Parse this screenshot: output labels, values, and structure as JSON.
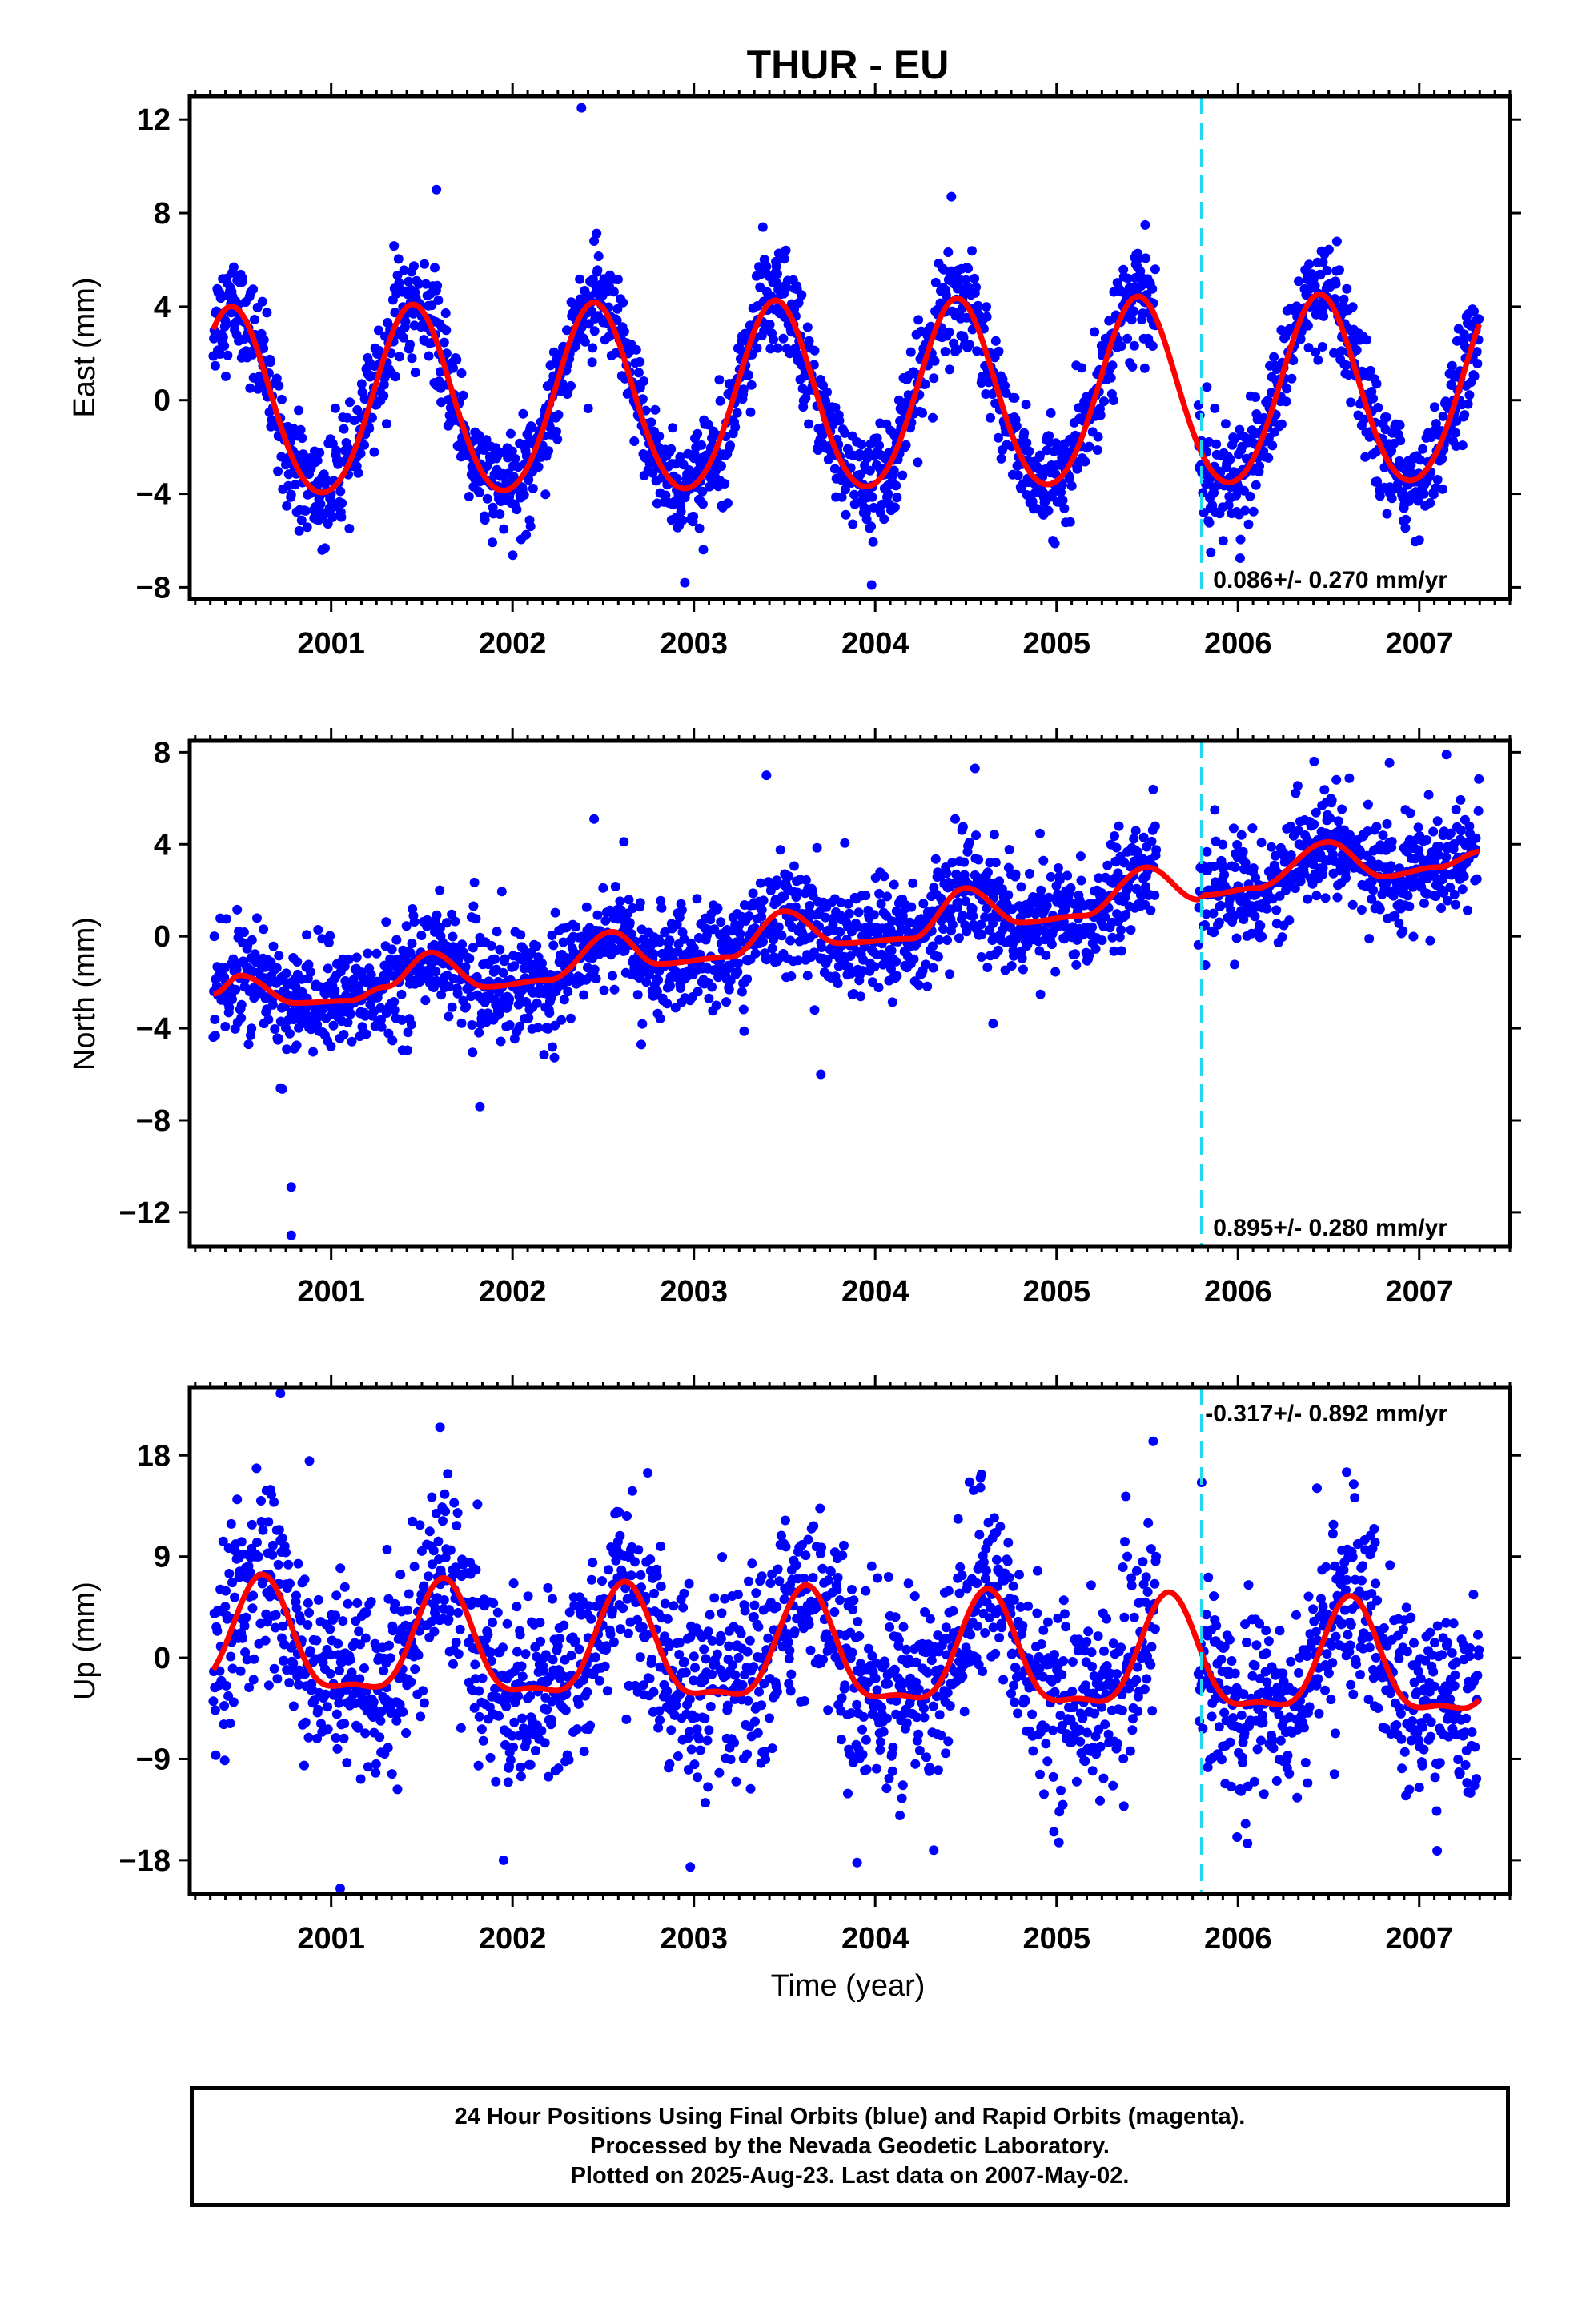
{
  "chart_data": {
    "type": "scatter",
    "title": "THUR - EU",
    "xlabel": "Time (year)",
    "xlim": [
      2000.22,
      2007.5
    ],
    "x_ticks": [
      "2001",
      "2002",
      "2003",
      "2004",
      "2005",
      "2006",
      "2007"
    ],
    "grid": false,
    "equipment_change_x": 2005.8,
    "colors": {
      "final_orbit_points": "#0000ff",
      "model_fit": "#ff0000",
      "offset_line": "#22d8ee",
      "frame": "#000000"
    },
    "panels": [
      {
        "name": "east",
        "ylabel": "East (mm)",
        "ylim": [
          -8.5,
          13
        ],
        "y_ticks": [
          "12",
          "8",
          "4",
          "0",
          "−4",
          "−8"
        ],
        "y_tick_values": [
          12,
          8,
          4,
          0,
          -4,
          -8
        ],
        "rate_label": "0.086+/- 0.270 mm/yr",
        "rate_position": "bottom-right",
        "model": {
          "amplitude_annual": 4.0,
          "phase_peak_year_fraction": 0.45,
          "amplitude_semiannual": 0.3,
          "trend_mm_per_yr": 0.086
        },
        "noise_sd": 1.1,
        "outliers": [
          [
            2002.38,
            12.5
          ],
          [
            2001.58,
            9.0
          ],
          [
            2004.42,
            8.7
          ],
          [
            2003.38,
            7.4
          ],
          [
            2000.95,
            -6.4
          ],
          [
            2002.95,
            -7.8
          ],
          [
            2003.98,
            -7.9
          ],
          [
            2005.85,
            -6.5
          ]
        ]
      },
      {
        "name": "north",
        "ylabel": "North (mm)",
        "ylim": [
          -13.5,
          8.5
        ],
        "y_ticks": [
          "8",
          "4",
          "0",
          "−4",
          "−8",
          "−12"
        ],
        "y_tick_values": [
          8,
          4,
          0,
          -4,
          -8,
          -12
        ],
        "rate_label": "0.895+/- 0.280 mm/yr",
        "rate_position": "bottom-right",
        "model": {
          "knots": [
            [
              2000.35,
              -2.5
            ],
            [
              2000.5,
              -1.7
            ],
            [
              2000.8,
              -2.9
            ],
            [
              2001.1,
              -2.8
            ],
            [
              2001.3,
              -2.2
            ],
            [
              2001.55,
              -0.7
            ],
            [
              2001.85,
              -2.2
            ],
            [
              2002.2,
              -1.9
            ],
            [
              2002.55,
              0.2
            ],
            [
              2002.8,
              -1.2
            ],
            [
              2003.2,
              -0.9
            ],
            [
              2003.5,
              1.1
            ],
            [
              2003.8,
              -0.3
            ],
            [
              2004.2,
              -0.1
            ],
            [
              2004.5,
              2.1
            ],
            [
              2004.8,
              0.6
            ],
            [
              2005.15,
              0.9
            ],
            [
              2005.5,
              3.0
            ],
            [
              2005.78,
              1.6
            ],
            [
              2005.82,
              1.8
            ],
            [
              2006.1,
              2.1
            ],
            [
              2006.5,
              4.1
            ],
            [
              2006.8,
              2.6
            ],
            [
              2007.1,
              3.0
            ],
            [
              2007.35,
              3.7
            ]
          ]
        },
        "noise_sd": 1.15,
        "outliers": [
          [
            2000.78,
            -10.9
          ],
          [
            2000.78,
            -13.0
          ],
          [
            2000.72,
            -6.6
          ],
          [
            2001.82,
            -7.4
          ],
          [
            2003.7,
            -6.0
          ],
          [
            2003.4,
            7.0
          ],
          [
            2004.55,
            7.3
          ],
          [
            2002.45,
            5.1
          ],
          [
            2004.65,
            -3.8
          ],
          [
            2006.42,
            7.6
          ],
          [
            2007.15,
            7.9
          ]
        ]
      },
      {
        "name": "up",
        "ylabel": "Up (mm)",
        "ylim": [
          -21,
          24
        ],
        "y_ticks": [
          "18",
          "9",
          "0",
          "−9",
          "−18"
        ],
        "y_tick_values": [
          18,
          9,
          0,
          -9,
          -18
        ],
        "rate_label": "-0.317+/- 0.892 mm/yr",
        "rate_position": "top-right",
        "model": {
          "amplitude_annual": 4.8,
          "phase_peak_year_fraction": 0.62,
          "amplitude_semiannual": 1.6,
          "trend_mm_per_yr": -0.317
        },
        "noise_sd": 4.2,
        "outliers": [
          [
            2000.72,
            23.5
          ],
          [
            2001.6,
            20.5
          ],
          [
            2000.88,
            17.5
          ],
          [
            2001.05,
            -20.5
          ],
          [
            2002.98,
            -18.6
          ],
          [
            2003.9,
            -18.2
          ],
          [
            2001.95,
            -18.0
          ],
          [
            2006.6,
            16.5
          ],
          [
            2004.58,
            16.0
          ],
          [
            2005.8,
            15.6
          ]
        ]
      }
    ]
  },
  "footer": {
    "line1": "24 Hour Positions Using Final Orbits (blue) and Rapid Orbits (magenta).",
    "line2": "Processed by the Nevada Geodetic Laboratory.",
    "line3": "Plotted on 2025-Aug-23. Last data on 2007-May-02."
  }
}
